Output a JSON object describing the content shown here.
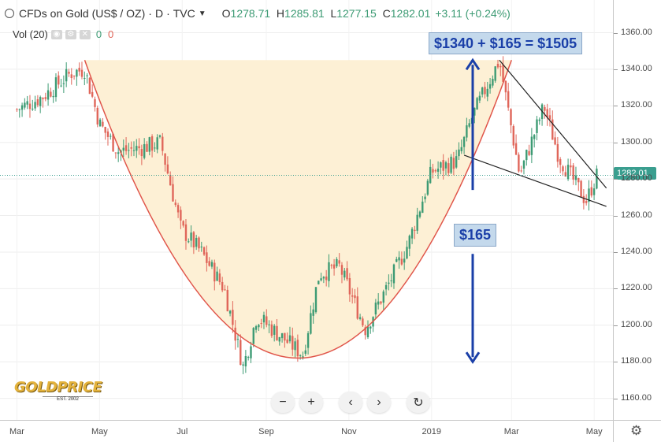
{
  "legend": {
    "symbol": "CFDs on Gold (US$ / OZ)",
    "separator1": "·",
    "interval": "D",
    "separator2": "·",
    "source": "TVC",
    "open_label": "O",
    "open": "1278.71",
    "high_label": "H",
    "high": "1285.81",
    "low_label": "L",
    "low": "1277.15",
    "close_label": "C",
    "close": "1282.01",
    "change": "+3.11 (+0.24%)"
  },
  "volume": {
    "label": "Vol (20)",
    "value1": "0",
    "value2": "0"
  },
  "annotations": {
    "target": "$1340 + $165 = $1505",
    "depth": "$165"
  },
  "price_tag": "1282.01",
  "logo": {
    "word": "GOLDPRICE",
    "est": "EST. 2002"
  },
  "nav": {
    "zoom_out": "−",
    "zoom_in": "+",
    "back": "‹",
    "forward": "›",
    "reset": "↻"
  },
  "settings_icon": "gear-icon",
  "colors": {
    "up": "#3d9b74",
    "down": "#e0665a",
    "cup_fill": "#fdf0d5",
    "cup_line": "#e0554a",
    "arrow": "#1a3fa8",
    "price_tag": "#3a9e8f"
  },
  "chart_data": {
    "type": "candlestick",
    "title": "CFDs on Gold (US$ / OZ)",
    "y_ticks": [
      "1360.00",
      "1340.00",
      "1320.00",
      "1300.00",
      "1280.00",
      "1260.00",
      "1240.00",
      "1220.00",
      "1200.00",
      "1180.00",
      "1160.00"
    ],
    "x_ticks": [
      "Mar",
      "May",
      "Jul",
      "Sep",
      "Nov",
      "2019",
      "Mar",
      "May"
    ],
    "ylim": [
      1153,
      1368
    ],
    "last_price": 1282.01,
    "close_path": [
      {
        "x": "2018-03-01",
        "y": 1318
      },
      {
        "x": "2018-03-20",
        "y": 1325
      },
      {
        "x": "2018-04-10",
        "y": 1338
      },
      {
        "x": "2018-04-20",
        "y": 1340
      },
      {
        "x": "2018-05-01",
        "y": 1310
      },
      {
        "x": "2018-05-15",
        "y": 1295
      },
      {
        "x": "2018-06-01",
        "y": 1297
      },
      {
        "x": "2018-06-15",
        "y": 1300
      },
      {
        "x": "2018-06-30",
        "y": 1253
      },
      {
        "x": "2018-07-15",
        "y": 1240
      },
      {
        "x": "2018-08-01",
        "y": 1220
      },
      {
        "x": "2018-08-15",
        "y": 1177
      },
      {
        "x": "2018-08-25",
        "y": 1205
      },
      {
        "x": "2018-09-10",
        "y": 1195
      },
      {
        "x": "2018-09-28",
        "y": 1184
      },
      {
        "x": "2018-10-10",
        "y": 1228
      },
      {
        "x": "2018-10-25",
        "y": 1232
      },
      {
        "x": "2018-11-13",
        "y": 1198
      },
      {
        "x": "2018-11-30",
        "y": 1222
      },
      {
        "x": "2018-12-15",
        "y": 1245
      },
      {
        "x": "2019-01-01",
        "y": 1284
      },
      {
        "x": "2019-01-20",
        "y": 1290
      },
      {
        "x": "2019-01-31",
        "y": 1314
      },
      {
        "x": "2019-02-20",
        "y": 1345
      },
      {
        "x": "2019-03-07",
        "y": 1282
      },
      {
        "x": "2019-03-25",
        "y": 1320
      },
      {
        "x": "2019-04-05",
        "y": 1292
      },
      {
        "x": "2019-04-25",
        "y": 1268
      },
      {
        "x": "2019-05-03",
        "y": 1282
      }
    ],
    "patterns": {
      "cup_rim": 1345,
      "cup_bottom": 1182,
      "wedge_upper": [
        {
          "x": "2019-02-20",
          "y": 1345
        },
        {
          "x": "2019-05-10",
          "y": 1275
        }
      ],
      "wedge_lower": [
        {
          "x": "2019-01-25",
          "y": 1293
        },
        {
          "x": "2019-05-10",
          "y": 1265
        }
      ],
      "arrow_from": 1180,
      "arrow_to": 1345
    }
  }
}
